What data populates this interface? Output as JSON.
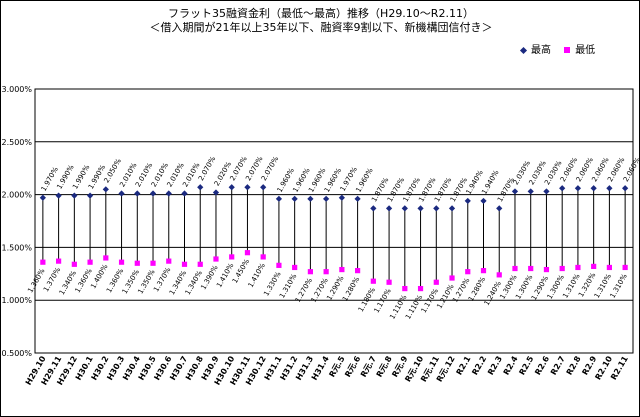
{
  "colors": {
    "high": "#1b2a80",
    "low": "#ff00ff",
    "stem": "#000000",
    "grid": "#000000"
  },
  "chart_data": {
    "type": "line",
    "title": "フラット35融資金利（最低～最高）推移（H29.10～R2.11）",
    "subtitle": "＜借入期間が21年以上35年以下、融資率9割以下、新機構団信付き＞",
    "ylim": [
      0.5,
      3.0
    ],
    "yticks": [
      "3.000%",
      "2.500%",
      "2.000%",
      "1.500%",
      "1.000%",
      "0.500%"
    ],
    "ytick_values": [
      3.0,
      2.5,
      2.0,
      1.5,
      1.0,
      0.5
    ],
    "categories": [
      "H29.10",
      "H29.11",
      "H29.12",
      "H30.1",
      "H30.2",
      "H30.3",
      "H30.4",
      "H30.5",
      "H30.6",
      "H30.7",
      "H30.8",
      "H30.9",
      "H30.10",
      "H30.11",
      "H30.12",
      "H31.1",
      "H31.2",
      "H31.3",
      "H31.4",
      "R元.5",
      "R元.6",
      "R元.7",
      "R元.8",
      "R元.9",
      "R元.10",
      "R元.11",
      "R元.12",
      "R2.1",
      "R2.2",
      "R2.3",
      "R2.4",
      "R2.5",
      "R2.6",
      "R2.7",
      "R2.8",
      "R2.9",
      "R2.10",
      "R2.11"
    ],
    "series": [
      {
        "name": "最高",
        "values": [
          1.97,
          1.99,
          1.99,
          1.99,
          2.05,
          2.01,
          2.01,
          2.01,
          2.01,
          2.01,
          2.07,
          2.02,
          2.07,
          2.07,
          2.07,
          1.96,
          1.96,
          1.96,
          1.96,
          1.97,
          1.96,
          1.87,
          1.87,
          1.87,
          1.87,
          1.87,
          1.87,
          1.94,
          1.94,
          1.87,
          2.03,
          2.03,
          2.03,
          2.06,
          2.06,
          2.06,
          2.06,
          2.06
        ]
      },
      {
        "name": "最低",
        "values": [
          1.36,
          1.37,
          1.34,
          1.36,
          1.4,
          1.36,
          1.35,
          1.35,
          1.37,
          1.34,
          1.34,
          1.39,
          1.41,
          1.45,
          1.41,
          1.33,
          1.31,
          1.27,
          1.27,
          1.29,
          1.28,
          1.18,
          1.17,
          1.11,
          1.11,
          1.17,
          1.21,
          1.27,
          1.28,
          1.24,
          1.3,
          1.3,
          1.29,
          1.3,
          1.31,
          1.32,
          1.31,
          1.31
        ]
      }
    ],
    "high_labels": [
      "1.970%",
      "1.990%",
      "1.990%",
      "1.990%",
      "2.050%",
      "2.010%",
      "2.010%",
      "2.010%",
      "2.010%",
      "2.010%",
      "2.070%",
      "2.020%",
      "2.070%",
      "2.070%",
      "2.070%",
      "1.960%",
      "1.960%",
      "1.960%",
      "1.960%",
      "1.970%",
      "1.960%",
      "1.870%",
      "1.870%",
      "1.870%",
      "1.870%",
      "1.870%",
      "1.870%",
      "1.940%",
      "1.940%",
      "1.870%",
      "2.030%",
      "2.030%",
      "2.030%",
      "2.060%",
      "2.060%",
      "2.060%",
      "2.060%",
      "2.060%"
    ],
    "low_labels": [
      "1.360%",
      "1.370%",
      "1.340%",
      "1.360%",
      "1.400%",
      "1.360%",
      "1.350%",
      "1.350%",
      "1.370%",
      "1.340%",
      "1.340%",
      "1.390%",
      "1.410%",
      "1.450%",
      "1.410%",
      "1.330%",
      "1.310%",
      "1.270%",
      "1.270%",
      "1.290%",
      "1.280%",
      "1.180%",
      "1.170%",
      "1.110%",
      "1.110%",
      "1.170%",
      "1.210%",
      "1.270%",
      "1.280%",
      "1.240%",
      "1.300%",
      "1.300%",
      "1.290%",
      "1.300%",
      "1.310%",
      "1.320%",
      "1.310%",
      "1.310%"
    ],
    "legend": [
      "最高",
      "最低"
    ],
    "legend_position": "top-right",
    "grid": true
  }
}
